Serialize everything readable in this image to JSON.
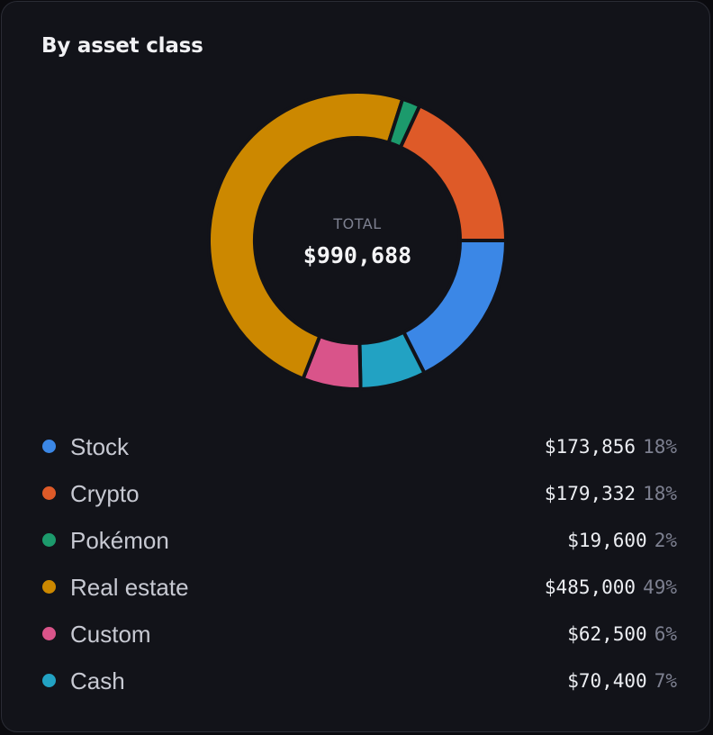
{
  "card": {
    "title": "By asset class"
  },
  "chart_data": {
    "type": "pie",
    "donut": true,
    "total_label": "TOTAL",
    "total_value": "$990,688",
    "slices": [
      {
        "name": "Stock",
        "value": 173856,
        "amount": "$173,856",
        "percent": "18%",
        "color": "#3b87e6"
      },
      {
        "name": "Cash",
        "value": 70400,
        "amount": "$70,400",
        "percent": "7%",
        "color": "#22a2c3"
      },
      {
        "name": "Custom",
        "value": 62500,
        "amount": "$62,500",
        "percent": "6%",
        "color": "#d9548a"
      },
      {
        "name": "Real estate",
        "value": 485000,
        "amount": "$485,000",
        "percent": "49%",
        "color": "#cc8800"
      },
      {
        "name": "Pokémon",
        "value": 19600,
        "amount": "$19,600",
        "percent": "2%",
        "color": "#1c9a6c"
      },
      {
        "name": "Crypto",
        "value": 179332,
        "amount": "$179,332",
        "percent": "18%",
        "color": "#de5a28"
      }
    ],
    "legend_order": [
      "Stock",
      "Crypto",
      "Pokémon",
      "Real estate",
      "Custom",
      "Cash"
    ]
  }
}
